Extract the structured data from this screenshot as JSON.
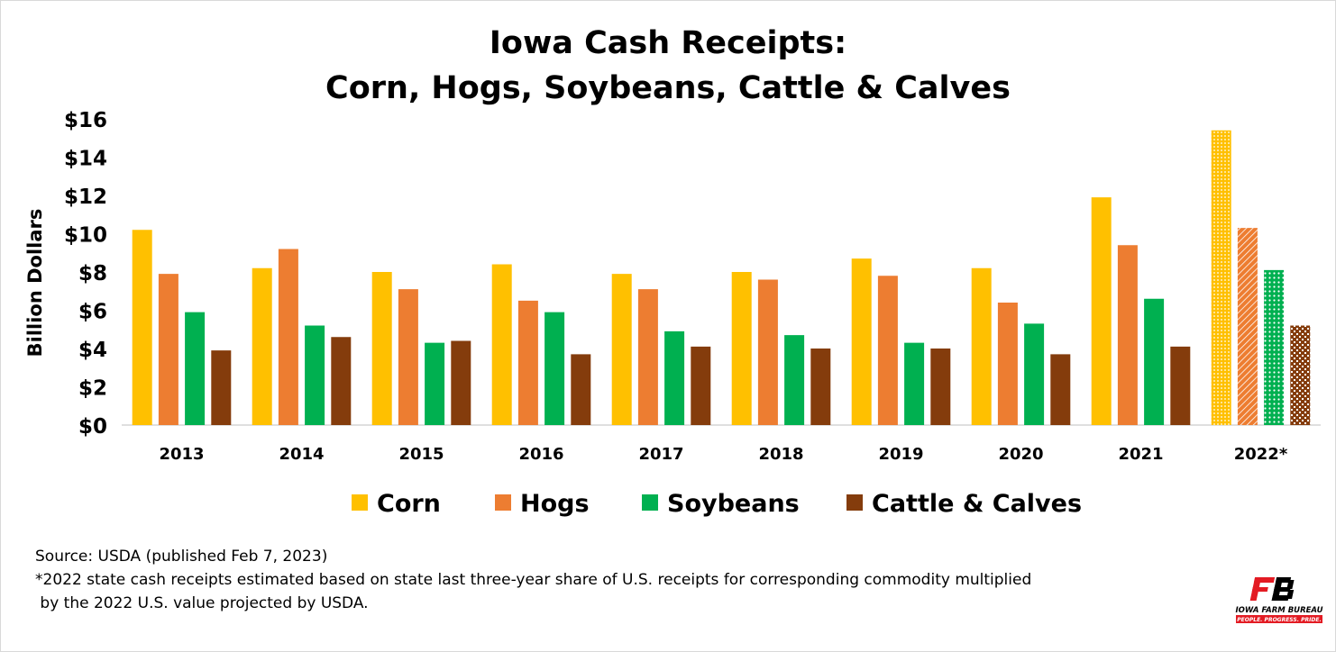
{
  "chart_data": {
    "type": "bar",
    "title": [
      "Iowa Cash Receipts:",
      "Corn, Hogs, Soybeans, Cattle & Calves"
    ],
    "ylabel": "Billion Dollars",
    "ylim": [
      0,
      16
    ],
    "yticks": [
      0,
      2,
      4,
      6,
      8,
      10,
      12,
      14,
      16
    ],
    "ytick_labels": [
      "$0",
      "$2",
      "$4",
      "$6",
      "$8",
      "$10",
      "$12",
      "$14",
      "$16"
    ],
    "grid": false,
    "legend_position": "bottom",
    "categories": [
      "2013",
      "2014",
      "2015",
      "2016",
      "2017",
      "2018",
      "2019",
      "2020",
      "2021",
      "2022*"
    ],
    "estimated_categories": [
      "2022*"
    ],
    "series": [
      {
        "name": "Corn",
        "color": "#FFC000",
        "values": [
          10.2,
          8.2,
          8.0,
          8.4,
          7.9,
          8.0,
          8.7,
          8.2,
          11.9,
          15.4
        ]
      },
      {
        "name": "Hogs",
        "color": "#ED7D31",
        "values": [
          7.9,
          9.2,
          7.1,
          6.5,
          7.1,
          7.6,
          7.8,
          6.4,
          9.4,
          10.3
        ]
      },
      {
        "name": "Soybeans",
        "color": "#00B050",
        "values": [
          5.9,
          5.2,
          4.3,
          5.9,
          4.9,
          4.7,
          4.3,
          5.3,
          6.6,
          8.1
        ]
      },
      {
        "name": "Cattle & Calves",
        "color": "#843C0C",
        "values": [
          3.9,
          4.6,
          4.4,
          3.7,
          4.1,
          4.0,
          4.0,
          3.7,
          4.1,
          5.2
        ]
      }
    ]
  },
  "notes": {
    "source": "Source: USDA (published Feb 7, 2023)",
    "footnote_line1": "*2022 state cash receipts estimated based on state last three-year share of U.S. receipts for corresponding commodity multiplied",
    "footnote_line2": " by the 2022 U.S. value projected by USDA."
  },
  "logo": {
    "mark": "FB",
    "name": "IOWA FARM BUREAU",
    "tagline": "PEOPLE. PROGRESS. PRIDE.",
    "color": "#E31B23"
  }
}
